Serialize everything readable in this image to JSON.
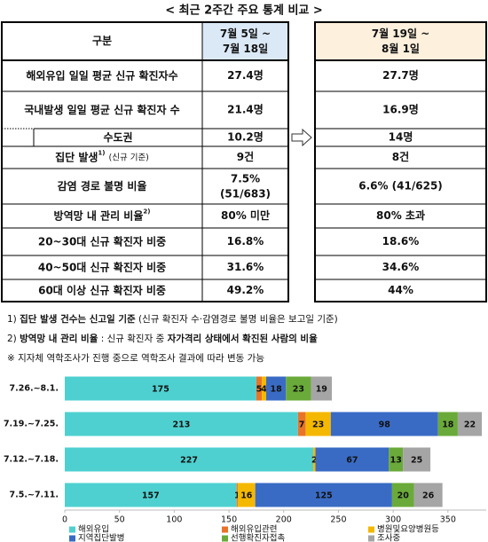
{
  "title": "< 최근 2주간 주요 통계 비교 >",
  "table": {
    "header": {
      "label": "구분",
      "period1": [
        "7월 5일 ~",
        "7월 18일"
      ],
      "period2": [
        "7월 19일 ~",
        "8월 1일"
      ]
    },
    "rows": [
      {
        "label": "해외유입 일일 평균 신규 확진자수",
        "values": [
          "27.4명",
          "27.7명"
        ]
      },
      {
        "label": "국내발생 일일 평균 신규 확진자 수",
        "values": [
          "21.4명",
          "16.9명"
        ]
      },
      {
        "label": "수도권",
        "values": [
          "10.2명",
          "14명"
        ]
      },
      {
        "label": "집단 발생",
        "sup": "1)",
        "note": "(신규 기준)",
        "values": [
          "9건",
          "8건"
        ]
      },
      {
        "label": "감염 경로 불명 비율",
        "values": [
          [
            "7.5%",
            "(51/683)"
          ],
          "6.6% (41/625)"
        ]
      },
      {
        "label": "방역망 내 관리 비율",
        "sup": "2)",
        "values": [
          "80% 미만",
          "80% 초과"
        ]
      },
      {
        "label": "20~30대 신규 확진자 비중",
        "values": [
          "16.8%",
          "18.6%"
        ]
      },
      {
        "label": "40~50대 신규 확진자 비중",
        "values": [
          "31.6%",
          "34.6%"
        ]
      },
      {
        "label": "60대 이상 신규 확진자 비중",
        "values": [
          "49.2%",
          "44%"
        ]
      }
    ]
  },
  "notes": [
    [
      {
        "text": "1) "
      },
      {
        "text": "집단 발생 건수는 신고일 기준",
        "bold": true
      },
      {
        "text": " (신규 확진자 수·감염경로 불명 비율은 보고일 기준)"
      }
    ],
    [
      {
        "text": "2) "
      },
      {
        "text": "방역망 내 관리 비율",
        "bold": true
      },
      {
        "text": " : 신규 확진자 중 "
      },
      {
        "text": "자가격리 상태에서 확진된 사람의 비율",
        "bold": true
      }
    ],
    [
      {
        "text": "※ 지자체 역학조사가 진행 중으로 역학조사 결과에 따라 변동 가능"
      }
    ]
  ],
  "chart_data": {
    "type": "stacked_barh",
    "categories": [
      "7.26.~8.1.",
      "7.19.~7.25.",
      "7.12.~7.18.",
      "7.5.~7.11."
    ],
    "series": [
      {
        "name": "해외유입",
        "color": "#4fd0d0",
        "values": [
          175,
          213,
          227,
          157
        ]
      },
      {
        "name": "해외유입관련",
        "color": "#e8742a",
        "values": [
          5,
          7,
          0,
          1
        ]
      },
      {
        "name": "병원및요양병원등",
        "color": "#f5b800",
        "values": [
          4,
          23,
          2,
          16
        ]
      },
      {
        "name": "지역집단발병",
        "color": "#3a6bc4",
        "values": [
          18,
          98,
          67,
          125
        ]
      },
      {
        "name": "선행확진자접촉",
        "color": "#6aaa3a",
        "values": [
          23,
          18,
          13,
          20
        ]
      },
      {
        "name": "조사중",
        "color": "#a5a5a5",
        "values": [
          19,
          22,
          25,
          26
        ]
      }
    ],
    "xlim": [
      0,
      385
    ],
    "xticks": [
      0,
      50,
      100,
      150,
      200,
      250,
      300,
      350
    ],
    "grid": false
  }
}
